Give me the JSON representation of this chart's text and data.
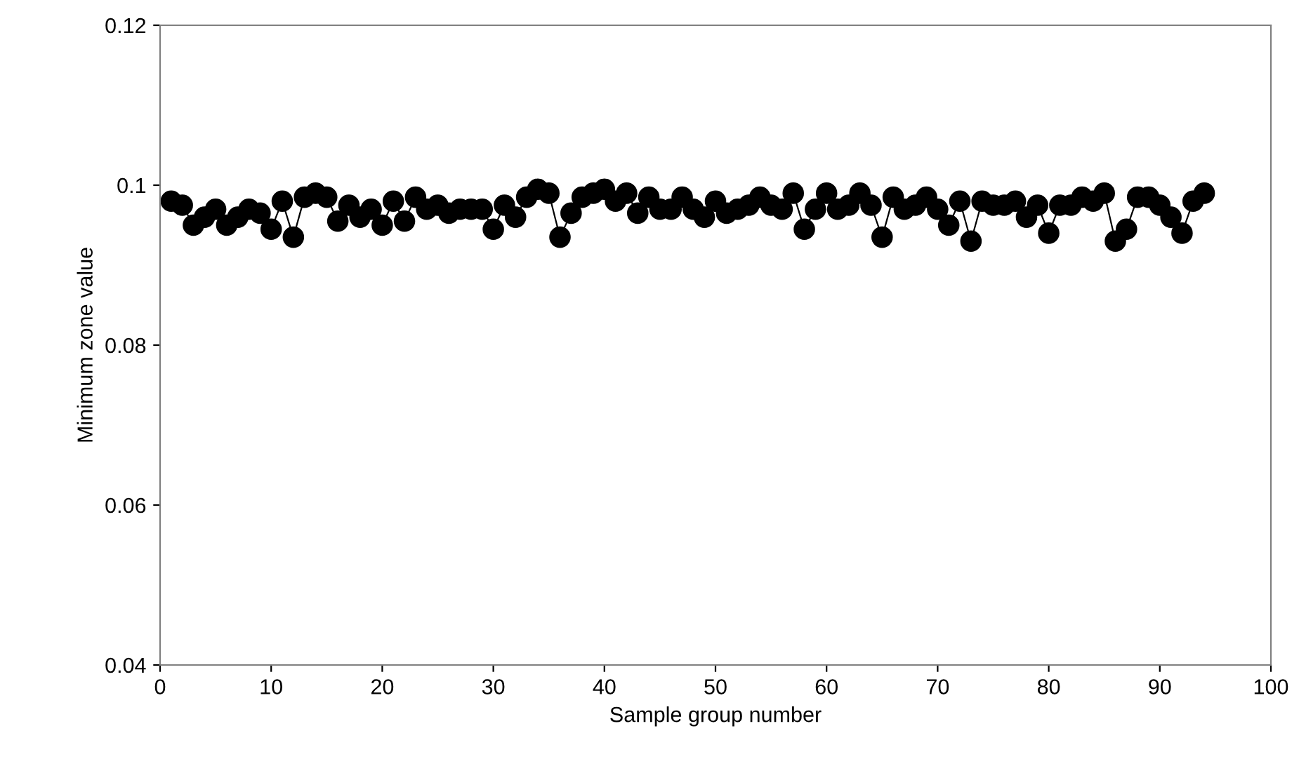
{
  "chart_data": {
    "type": "line",
    "xlabel": "Sample group number",
    "ylabel": "Minimum zone value",
    "x": [
      1,
      2,
      3,
      4,
      5,
      6,
      7,
      8,
      9,
      10,
      11,
      12,
      13,
      14,
      15,
      16,
      17,
      18,
      19,
      20,
      21,
      22,
      23,
      24,
      25,
      26,
      27,
      28,
      29,
      30,
      31,
      32,
      33,
      34,
      35,
      36,
      37,
      38,
      39,
      40,
      41,
      42,
      43,
      44,
      45,
      46,
      47,
      48,
      49,
      50,
      51,
      52,
      53,
      54,
      55,
      56,
      57,
      58,
      59,
      60,
      61,
      62,
      63,
      64,
      65,
      66,
      67,
      68,
      69,
      70,
      71,
      72,
      73,
      74,
      75,
      76,
      77,
      78,
      79,
      80,
      81,
      82,
      83,
      84,
      85,
      86,
      87,
      88,
      89,
      90,
      91,
      92,
      93,
      94
    ],
    "series": [
      {
        "color": "#000000",
        "values": [
          0.098,
          0.0975,
          0.095,
          0.096,
          0.097,
          0.095,
          0.096,
          0.097,
          0.0965,
          0.0945,
          0.098,
          0.0935,
          0.0985,
          0.099,
          0.0985,
          0.0955,
          0.0975,
          0.096,
          0.097,
          0.095,
          0.098,
          0.0955,
          0.0985,
          0.097,
          0.0975,
          0.0965,
          0.097,
          0.097,
          0.097,
          0.0945,
          0.0975,
          0.096,
          0.0985,
          0.0995,
          0.099,
          0.0935,
          0.0965,
          0.0985,
          0.099,
          0.0995,
          0.098,
          0.099,
          0.0965,
          0.0985,
          0.097,
          0.097,
          0.0985,
          0.097,
          0.096,
          0.098,
          0.0965,
          0.097,
          0.0975,
          0.0985,
          0.0975,
          0.097,
          0.099,
          0.0945,
          0.097,
          0.099,
          0.097,
          0.0975,
          0.099,
          0.0975,
          0.0935,
          0.0985,
          0.097,
          0.0975,
          0.0985,
          0.097,
          0.095,
          0.098,
          0.093,
          0.098,
          0.0975,
          0.0975,
          0.098,
          0.096,
          0.0975,
          0.094,
          0.0975,
          0.0975,
          0.0985,
          0.098,
          0.099,
          0.093,
          0.0945,
          0.0985,
          0.0985,
          0.0975,
          0.096,
          0.094,
          0.098,
          0.099
        ]
      }
    ],
    "xlim": [
      0,
      100
    ],
    "xticks": [
      0,
      10,
      20,
      30,
      40,
      50,
      60,
      70,
      80,
      90,
      100
    ],
    "ylim": [
      0.04,
      0.12
    ],
    "yticks": [
      {
        "value": 0.04,
        "label": "0.04"
      },
      {
        "value": 0.06,
        "label": "0.06"
      },
      {
        "value": 0.08,
        "label": "0.08"
      },
      {
        "value": 0.1,
        "label": "0.1"
      },
      {
        "value": 0.12,
        "label": "0.12"
      }
    ],
    "marker": "circle",
    "line_style": "solid"
  }
}
